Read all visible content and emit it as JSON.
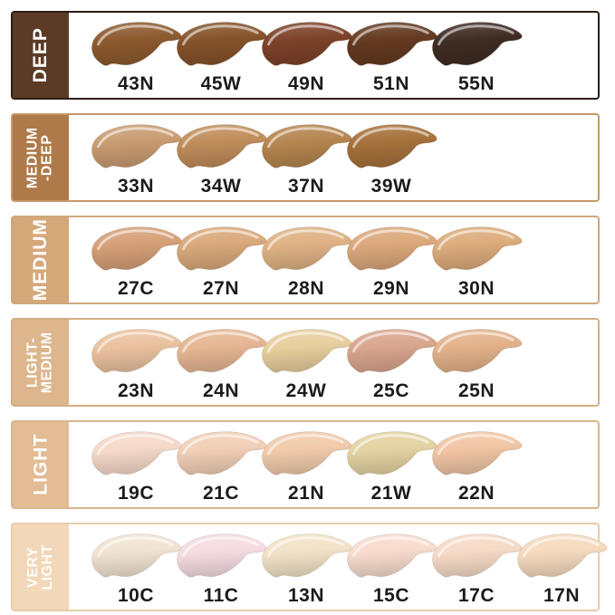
{
  "title": "Foundation shade range chart",
  "rows": [
    {
      "category": "DEEP",
      "label_lines": [
        "DEEP"
      ],
      "sidebar_color": "#5C3B26",
      "border_color": "#2B1D14",
      "shades": [
        {
          "code": "43N",
          "color": "#8D5A2F"
        },
        {
          "code": "45W",
          "color": "#85532B"
        },
        {
          "code": "49N",
          "color": "#7D422A"
        },
        {
          "code": "51N",
          "color": "#643A20"
        },
        {
          "code": "55N",
          "color": "#3F2C23"
        }
      ]
    },
    {
      "category": "MEDIUM-DEEP",
      "label_lines": [
        "MEDIUM",
        "-DEEP"
      ],
      "sidebar_color": "#AE7A49",
      "border_color": "#C49A6C",
      "shades": [
        {
          "code": "33N",
          "color": "#C99C72"
        },
        {
          "code": "34W",
          "color": "#C08D5A"
        },
        {
          "code": "37N",
          "color": "#B5854F"
        },
        {
          "code": "39W",
          "color": "#A6713B"
        }
      ]
    },
    {
      "category": "MEDIUM",
      "label_lines": [
        "MEDIUM"
      ],
      "sidebar_color": "#D5A87A",
      "border_color": "#CFA87C",
      "shades": [
        {
          "code": "27C",
          "color": "#D6A078"
        },
        {
          "code": "27N",
          "color": "#D9A97B"
        },
        {
          "code": "28N",
          "color": "#DFB285"
        },
        {
          "code": "29N",
          "color": "#DBA87B"
        },
        {
          "code": "30N",
          "color": "#DCAC7C"
        }
      ]
    },
    {
      "category": "LIGHT-MEDIUM",
      "label_lines": [
        "LIGHT-",
        "MEDIUM"
      ],
      "sidebar_color": "#DDB68D",
      "border_color": "#D3AE83",
      "shades": [
        {
          "code": "23N",
          "color": "#EBC2A0"
        },
        {
          "code": "24N",
          "color": "#E6B694"
        },
        {
          "code": "24W",
          "color": "#E7CE9D"
        },
        {
          "code": "25C",
          "color": "#D9A68F"
        },
        {
          "code": "25N",
          "color": "#E3B28B"
        }
      ]
    },
    {
      "category": "LIGHT",
      "label_lines": [
        "LIGHT"
      ],
      "sidebar_color": "#E2BC94",
      "border_color": "#D9B68C",
      "shades": [
        {
          "code": "19C",
          "color": "#F5DAC9"
        },
        {
          "code": "21C",
          "color": "#F2CFB7"
        },
        {
          "code": "21N",
          "color": "#F1CBAB"
        },
        {
          "code": "21W",
          "color": "#E4D3A3"
        },
        {
          "code": "22N",
          "color": "#F1C5A4"
        }
      ]
    },
    {
      "category": "VERY LIGHT",
      "label_lines": [
        "VERY",
        "LIGHT"
      ],
      "sidebar_color": "#F2D7B8",
      "border_color": "#E7CDA9",
      "shades": [
        {
          "code": "10C",
          "color": "#F1E3D3"
        },
        {
          "code": "11C",
          "color": "#F5DCE1"
        },
        {
          "code": "13N",
          "color": "#F2E2C8"
        },
        {
          "code": "15C",
          "color": "#F7DCCE"
        },
        {
          "code": "17C",
          "color": "#F6DBC7"
        },
        {
          "code": "17N",
          "color": "#F5DABF"
        }
      ]
    }
  ],
  "chart_data": {
    "type": "table",
    "title": "Foundation shade range chart",
    "categories": [
      "DEEP",
      "MEDIUM-DEEP",
      "MEDIUM",
      "LIGHT-MEDIUM",
      "LIGHT",
      "VERY LIGHT"
    ],
    "series": [
      {
        "name": "DEEP",
        "values": [
          "43N",
          "45W",
          "49N",
          "51N",
          "55N"
        ]
      },
      {
        "name": "MEDIUM-DEEP",
        "values": [
          "33N",
          "34W",
          "37N",
          "39W"
        ]
      },
      {
        "name": "MEDIUM",
        "values": [
          "27C",
          "27N",
          "28N",
          "29N",
          "30N"
        ]
      },
      {
        "name": "LIGHT-MEDIUM",
        "values": [
          "23N",
          "24N",
          "24W",
          "25C",
          "25N"
        ]
      },
      {
        "name": "LIGHT",
        "values": [
          "19C",
          "21C",
          "21N",
          "21W",
          "22N"
        ]
      },
      {
        "name": "VERY LIGHT",
        "values": [
          "10C",
          "11C",
          "13N",
          "15C",
          "17C",
          "17N"
        ]
      }
    ],
    "legend_position": "left-sidebar",
    "grid": false
  }
}
